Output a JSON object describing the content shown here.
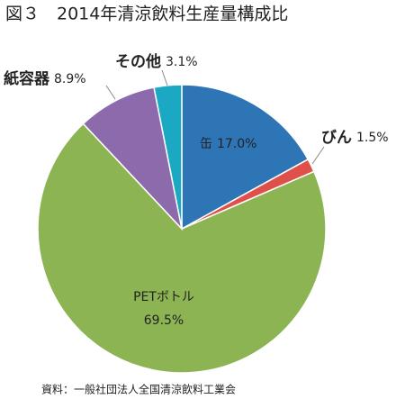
{
  "chart_data": {
    "type": "pie",
    "title": "図３　2014年清涼飲料生産量構成比",
    "source": "資料：一般社団法人全国清涼飲料工業会",
    "categories": [
      "缶",
      "びん",
      "PETボトル",
      "紙容器",
      "その他"
    ],
    "values": [
      17.0,
      1.5,
      69.5,
      8.9,
      3.1
    ],
    "value_labels": [
      "17.0%",
      "1.5%",
      "69.5%",
      "8.9%",
      "3.1%"
    ],
    "colors": [
      "#2e75b6",
      "#e0504a",
      "#8cb453",
      "#8c6aab",
      "#1aa8c3"
    ]
  }
}
